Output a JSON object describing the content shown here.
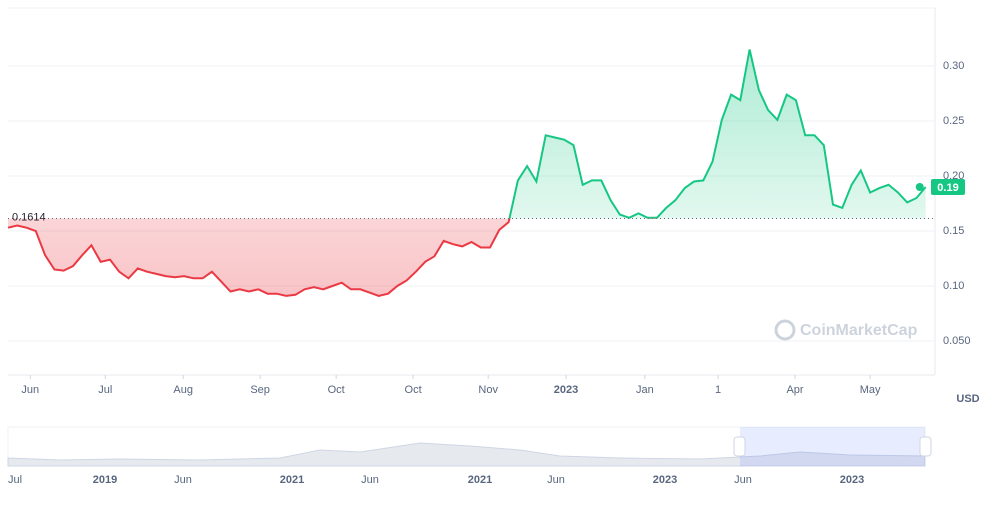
{
  "chart_data": {
    "type": "line",
    "values": [
      0.153,
      0.155,
      0.153,
      0.15,
      0.128,
      0.115,
      0.114,
      0.118,
      0.128,
      0.137,
      0.122,
      0.124,
      0.113,
      0.107,
      0.116,
      0.113,
      0.111,
      0.109,
      0.108,
      0.109,
      0.107,
      0.107,
      0.113,
      0.104,
      0.095,
      0.097,
      0.095,
      0.097,
      0.093,
      0.093,
      0.091,
      0.092,
      0.097,
      0.099,
      0.097,
      0.1,
      0.103,
      0.097,
      0.097,
      0.094,
      0.091,
      0.093,
      0.1,
      0.105,
      0.113,
      0.122,
      0.127,
      0.141,
      0.138,
      0.136,
      0.14,
      0.135,
      0.135,
      0.151,
      0.158,
      0.196,
      0.209,
      0.195,
      0.237,
      0.235,
      0.233,
      0.228,
      0.192,
      0.196,
      0.196,
      0.178,
      0.165,
      0.162,
      0.166,
      0.162,
      0.162,
      0.171,
      0.178,
      0.189,
      0.195,
      0.196,
      0.213,
      0.251,
      0.274,
      0.269,
      0.315,
      0.278,
      0.26,
      0.251,
      0.274,
      0.269,
      0.237,
      0.237,
      0.228,
      0.174,
      0.171,
      0.192,
      0.205,
      0.185,
      0.189,
      0.192,
      0.185,
      0.176,
      0.18,
      0.19
    ],
    "up_color": "#16c784",
    "down_color": "#ea3943",
    "baseline": 0.1614,
    "current_price": 0.19,
    "xlim": [
      0,
      100
    ],
    "xticks": [
      {
        "value": 2.4,
        "label": "Jun"
      },
      {
        "value": 10.5,
        "label": "Jul"
      },
      {
        "value": 18.9,
        "label": "Aug"
      },
      {
        "value": 27.2,
        "label": "Sep"
      },
      {
        "value": 35.4,
        "label": "Oct"
      },
      {
        "value": 43.7,
        "label": "Oct"
      },
      {
        "value": 51.8,
        "label": "Nov"
      },
      {
        "value": 60.2,
        "label": "2023"
      },
      {
        "value": 68.7,
        "label": "Jan"
      },
      {
        "value": 76.6,
        "label": "1"
      },
      {
        "value": 84.9,
        "label": "Apr"
      },
      {
        "value": 93.0,
        "label": "May"
      }
    ],
    "ylim": [
      0.0191,
      0.3527
    ],
    "yticks": [
      {
        "value": 0.05,
        "label": "0.050"
      },
      {
        "value": 0.1,
        "label": "0.10"
      },
      0.15,
      {
        "value": 0.2,
        "label": "0.20"
      },
      0.25,
      {
        "value": 0.3,
        "label": "0.30"
      }
    ],
    "grid": true,
    "currency": "USD",
    "watermark": "CoinMarketCap",
    "navigator_labels": [
      "Jul",
      "2019",
      "Jun",
      "2021",
      "Jun",
      "2021",
      "Jun",
      "2023",
      "Jun",
      "2023"
    ]
  }
}
